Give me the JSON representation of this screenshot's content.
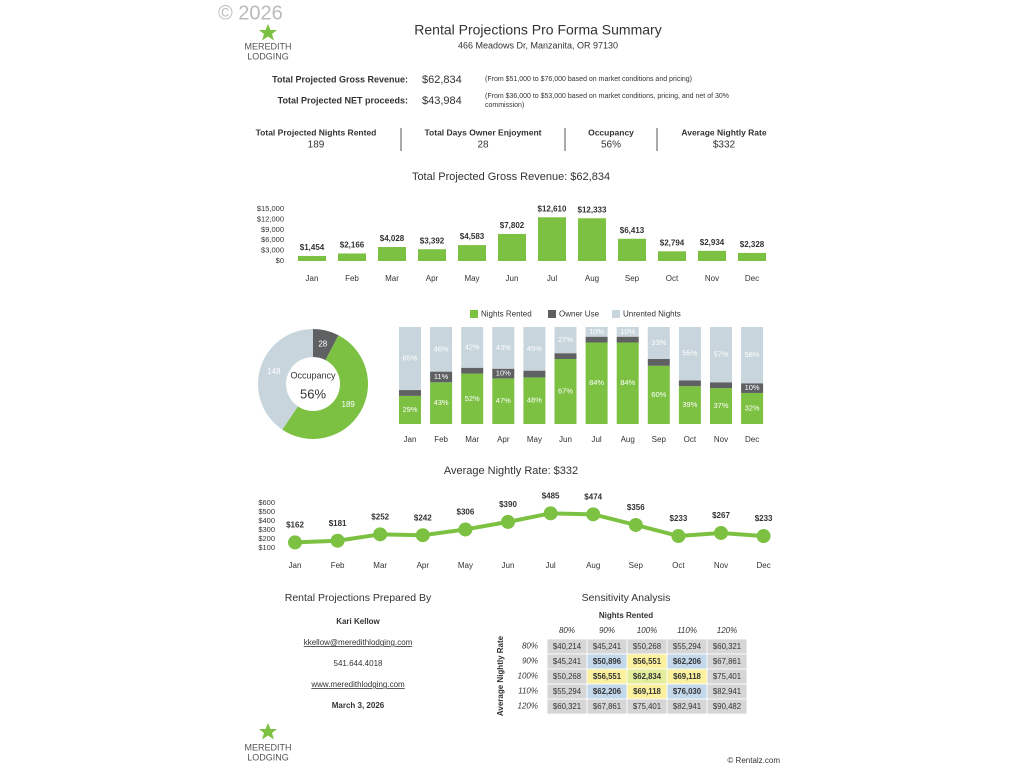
{
  "watermark": "© 2026",
  "logo": {
    "line1": "MEREDITH",
    "line2": "LODGING"
  },
  "header": {
    "title": "Rental Projections Pro Forma Summary",
    "address": "466 Meadows Dr, Manzanita, OR 97130"
  },
  "summary": [
    {
      "label": "Total Projected Gross Revenue:",
      "value": "$62,834",
      "note": "(From $51,000 to $76,000 based on market conditions and pricing)"
    },
    {
      "label": "Total Projected NET proceeds:",
      "value": "$43,984",
      "note": "(From $36,000 to $53,000 based on market conditions, pricing, and net of 30% commission)"
    }
  ],
  "kpis": [
    {
      "label": "Total Projected Nights Rented",
      "value": 189
    },
    {
      "label": "Total Days Owner Enjoyment",
      "value": 28
    },
    {
      "label": "Occupancy",
      "value": "56%"
    },
    {
      "label": "Average Nightly Rate",
      "value": "$332"
    }
  ],
  "chart_data": [
    {
      "type": "bar",
      "title": "Total Projected Gross Revenue: $62,834",
      "categories": [
        "Jan",
        "Feb",
        "Mar",
        "Apr",
        "May",
        "Jun",
        "Jul",
        "Aug",
        "Sep",
        "Oct",
        "Nov",
        "Dec"
      ],
      "values": [
        1454,
        2166,
        4028,
        3392,
        4583,
        7802,
        12610,
        12333,
        6413,
        2794,
        2934,
        2328
      ],
      "value_labels": [
        "$1,454",
        "$2,166",
        "$4,028",
        "$3,392",
        "$4,583",
        "$7,802",
        "$12,610",
        "$12,333",
        "$6,413",
        "$2,794",
        "$2,934",
        "$2,328"
      ],
      "color": "#7cc142",
      "ylim": [
        0,
        15000
      ],
      "yticks": [
        {
          "value": 0,
          "label": "$0"
        },
        {
          "value": 3000,
          "label": "$3,000"
        },
        {
          "value": 6000,
          "label": "$6,000"
        },
        {
          "value": 9000,
          "label": "$9,000"
        },
        {
          "value": 12000,
          "label": "$12,000"
        },
        {
          "value": 15000,
          "label": "$15,000"
        }
      ]
    },
    {
      "type": "pie",
      "center_title": "Occupancy",
      "center_label": "56%",
      "values": [
        28,
        189,
        148
      ],
      "colors": [
        "#5f6062",
        "#7cc142",
        "#c8d5dc"
      ]
    },
    {
      "type": "stacked_bar",
      "categories": [
        "Jan",
        "Feb",
        "Mar",
        "Apr",
        "May",
        "Jun",
        "Jul",
        "Aug",
        "Sep",
        "Oct",
        "Nov",
        "Dec"
      ],
      "ylim": [
        0,
        100
      ],
      "legend": "top",
      "series": [
        {
          "name": "Nights Rented",
          "color": "#7cc142",
          "values": [
            29,
            43,
            52,
            47,
            48,
            67,
            84,
            84,
            60,
            39,
            37,
            32
          ],
          "value_labels": [
            "29%",
            "43%",
            "52%",
            "47%",
            "48%",
            "67%",
            "84%",
            "84%",
            "60%",
            "39%",
            "37%",
            "32%"
          ]
        },
        {
          "name": "Owner Use",
          "color": "#5f6062",
          "values": [
            6,
            11,
            6,
            10,
            7,
            6,
            6,
            6,
            7,
            6,
            6,
            10
          ],
          "value_labels": [
            null,
            "11%",
            null,
            "10%",
            null,
            null,
            null,
            null,
            null,
            null,
            null,
            "10%"
          ]
        },
        {
          "name": "Unrented Nights",
          "color": "#c8d5dc",
          "values": [
            65,
            46,
            42,
            43,
            45,
            27,
            10,
            10,
            33,
            55,
            57,
            58
          ],
          "value_labels": [
            "65%",
            "46%",
            "42%",
            "43%",
            "45%",
            "27%",
            "10%",
            "10%",
            "33%",
            "55%",
            "57%",
            "58%"
          ]
        }
      ]
    },
    {
      "type": "line",
      "title": "Average Nightly Rate: $332",
      "categories": [
        "Jan",
        "Feb",
        "Mar",
        "Apr",
        "May",
        "Jun",
        "Jul",
        "Aug",
        "Sep",
        "Oct",
        "Nov",
        "Dec"
      ],
      "values": [
        162,
        181,
        252,
        242,
        306,
        390,
        485,
        474,
        356,
        233,
        267,
        233
      ],
      "value_labels": [
        "$162",
        "$181",
        "$252",
        "$242",
        "$306",
        "$390",
        "$485",
        "$474",
        "$356",
        "$233",
        "$267",
        "$233"
      ],
      "color": "#7cc142",
      "ylim": [
        100,
        600
      ],
      "yticks": [
        {
          "value": 100,
          "label": "$100"
        },
        {
          "value": 200,
          "label": "$200"
        },
        {
          "value": 300,
          "label": "$300"
        },
        {
          "value": 400,
          "label": "$400"
        },
        {
          "value": 500,
          "label": "$500"
        },
        {
          "value": 600,
          "label": "$600"
        }
      ]
    }
  ],
  "contact": {
    "title": "Rental Projections Prepared By",
    "name": "Kari Kellow",
    "email": "kkellow@meredithlodging.com",
    "phone": "541.644.4018",
    "website": "www.meredithlodging.com",
    "date": "March 3, 2026"
  },
  "sensitivity": {
    "title": "Sensitivity Analysis",
    "column_header": "Nights Rented",
    "row_header": "Average Nightly Rate",
    "columns": [
      "80%",
      "90%",
      "100%",
      "110%",
      "120%"
    ],
    "rows": [
      {
        "label": "80%",
        "cells": [
          "$40,214",
          "$45,241",
          "$50,268",
          "$55,294",
          "$60,321"
        ]
      },
      {
        "label": "90%",
        "cells": [
          "$45,241",
          "$50,896",
          "$56,551",
          "$62,206",
          "$67,861"
        ]
      },
      {
        "label": "100%",
        "cells": [
          "$50,268",
          "$56,551",
          "$62,834",
          "$69,118",
          "$75,401"
        ]
      },
      {
        "label": "110%",
        "cells": [
          "$55,294",
          "$62,206",
          "$69,118",
          "$76,030",
          "$82,941"
        ]
      },
      {
        "label": "120%",
        "cells": [
          "$60,321",
          "$67,861",
          "$75,401",
          "$82,941",
          "$90,482"
        ]
      }
    ]
  },
  "footer": "© Rentalz.com"
}
